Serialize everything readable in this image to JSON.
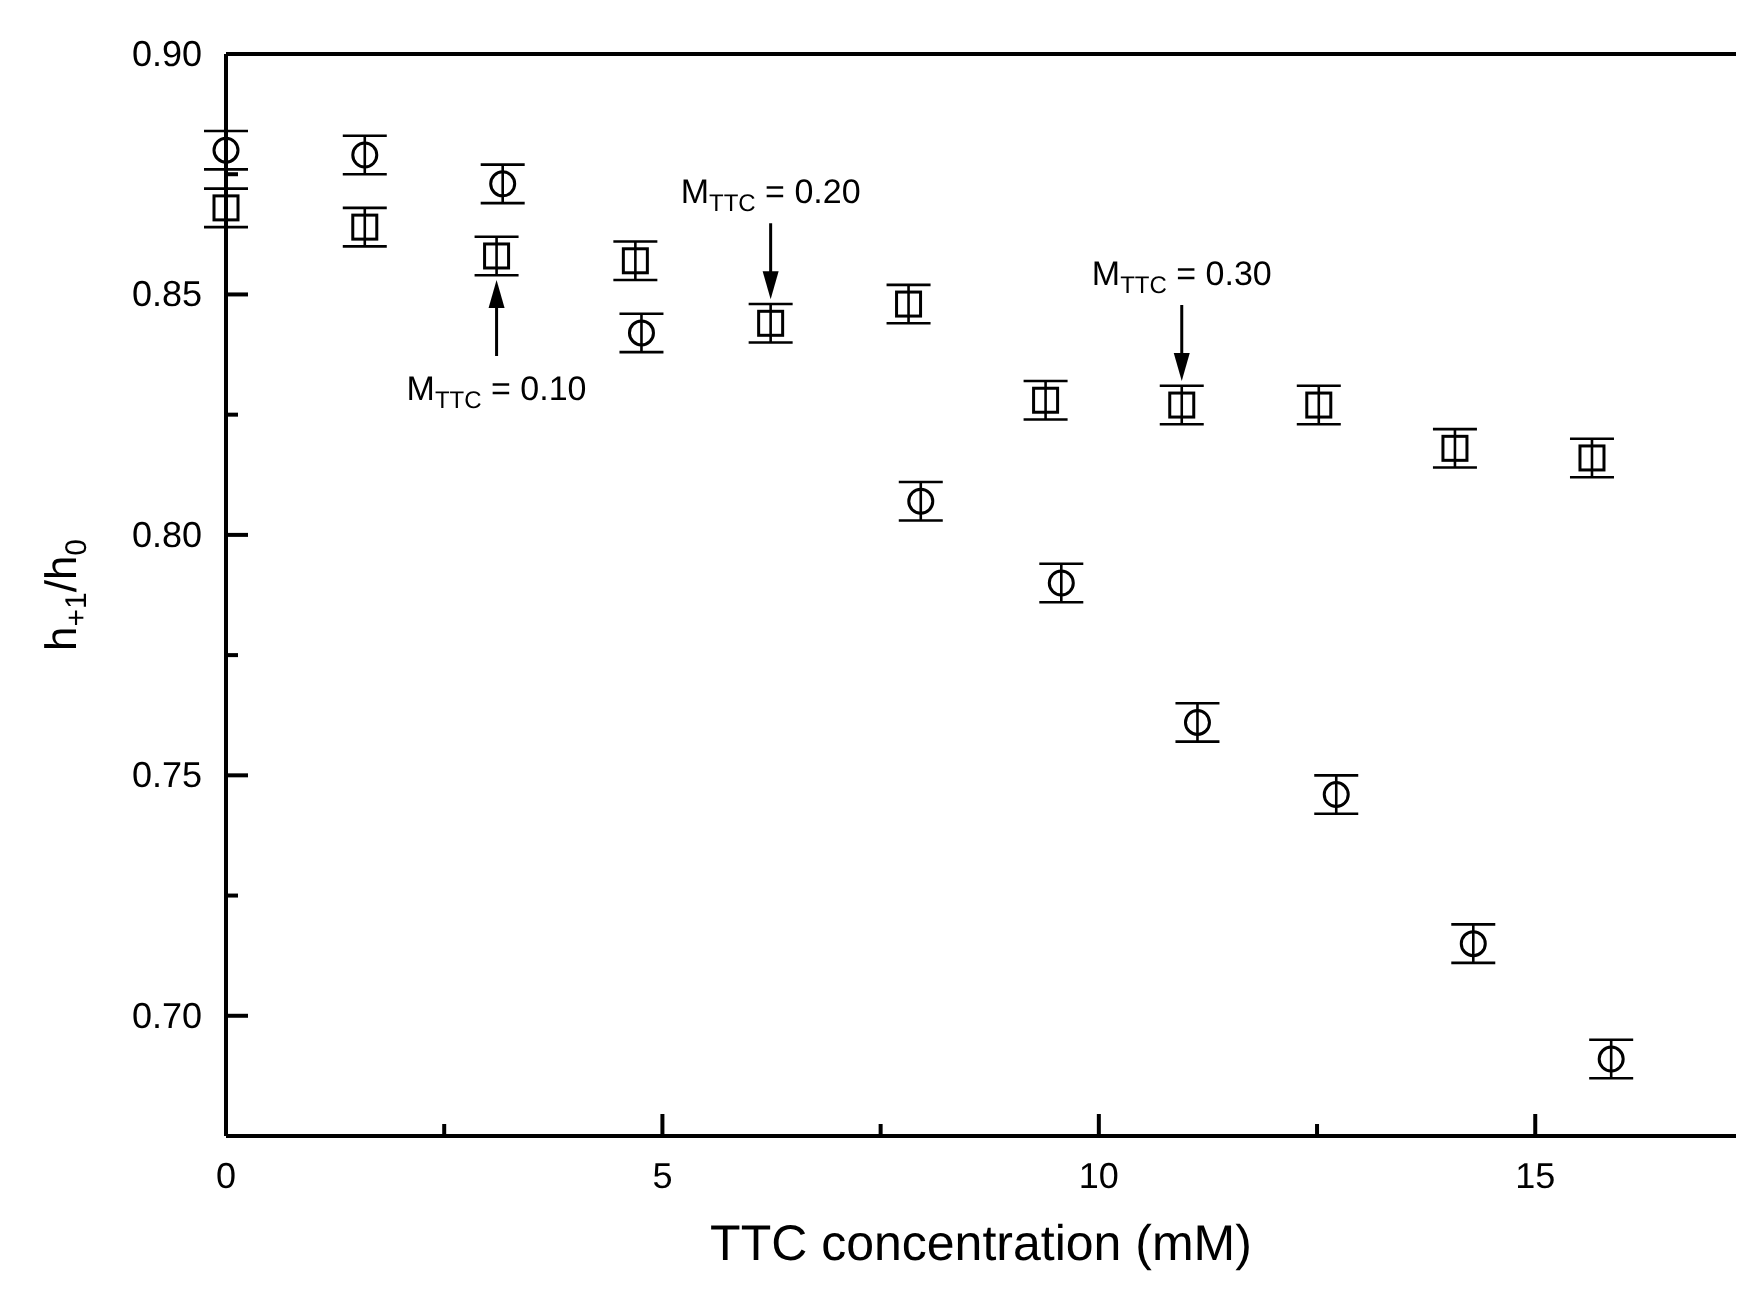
{
  "chart_data": {
    "type": "scatter",
    "xlabel": "TTC concentration (mM)",
    "ylabel": "h$_{+1}$/h$_{0}$",
    "xlim": [
      0,
      17.3
    ],
    "ylim": [
      0.675,
      0.9
    ],
    "xticks": [
      0,
      {
        "value": 2.5,
        "label": null
      },
      5,
      {
        "value": 7.5,
        "label": null
      },
      10,
      {
        "value": 12.5,
        "label": null
      },
      15
    ],
    "yticks": [
      {
        "value": 0.7,
        "label": "0.70"
      },
      {
        "value": 0.725,
        "label": null
      },
      {
        "value": 0.75,
        "label": "0.75"
      },
      {
        "value": 0.775,
        "label": null
      },
      {
        "value": 0.8,
        "label": "0.80"
      },
      {
        "value": 0.825,
        "label": null
      },
      {
        "value": 0.85,
        "label": "0.85"
      },
      {
        "value": 0.875,
        "label": null
      },
      {
        "value": 0.9,
        "label": "0.90"
      }
    ],
    "grid": false,
    "series": [
      {
        "color": "#000000",
        "marker": "circle",
        "x": [
          0,
          1.59,
          3.17,
          4.76,
          7.96,
          9.57,
          11.13,
          12.72,
          14.29,
          15.87
        ],
        "values": [
          0.88,
          0.879,
          0.873,
          0.842,
          0.807,
          0.79,
          0.761,
          0.746,
          0.715,
          0.691
        ],
        "errors": [
          0.004,
          0.004,
          0.004,
          0.004,
          0.004,
          0.004,
          0.004,
          0.004,
          0.004,
          0.004
        ]
      },
      {
        "color": "#000000",
        "marker": "square",
        "x": [
          0,
          1.59,
          3.1,
          4.69,
          6.24,
          7.82,
          9.39,
          10.95,
          12.52,
          14.08,
          15.65
        ],
        "values": [
          0.868,
          0.864,
          0.858,
          0.857,
          0.844,
          0.848,
          0.828,
          0.827,
          0.827,
          0.818,
          0.816
        ],
        "errors": [
          0.004,
          0.004,
          0.004,
          0.004,
          0.004,
          0.004,
          0.004,
          0.004,
          0.004,
          0.004,
          0.004
        ]
      }
    ],
    "annotations": [
      {
        "text": "M$_{TTC}$ = 0.10",
        "x": 3.1,
        "y": 0.853
      },
      {
        "text": "M$_{TTC}$ = 0.20",
        "x": 6.24,
        "y": 0.849
      },
      {
        "text": "M$_{TTC}$ = 0.30",
        "x": 10.95,
        "y": 0.832
      }
    ]
  }
}
